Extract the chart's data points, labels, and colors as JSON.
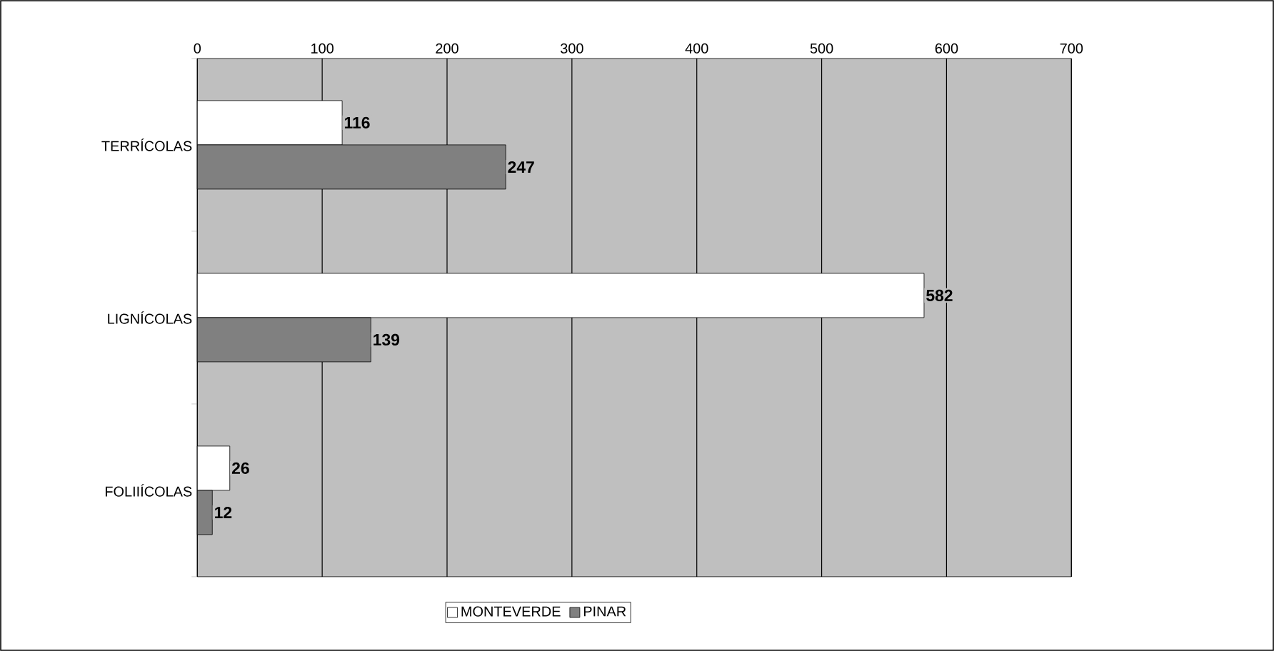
{
  "chart_data": {
    "type": "bar",
    "orientation": "horizontal",
    "categories": [
      "TERRÍCOLAS",
      "LIGNÍCOLAS",
      "FOLIIÍCOLAS"
    ],
    "series": [
      {
        "name": "MONTEVERDE",
        "color": "#ffffff",
        "values": [
          116,
          582,
          26
        ]
      },
      {
        "name": "PINAR",
        "color": "#808080",
        "values": [
          247,
          139,
          12
        ]
      }
    ],
    "xlim": [
      0,
      700
    ],
    "xticks": [
      0,
      100,
      200,
      300,
      400,
      500,
      600,
      700
    ],
    "grid": "x",
    "legend": "bottom",
    "data_labels": true
  }
}
